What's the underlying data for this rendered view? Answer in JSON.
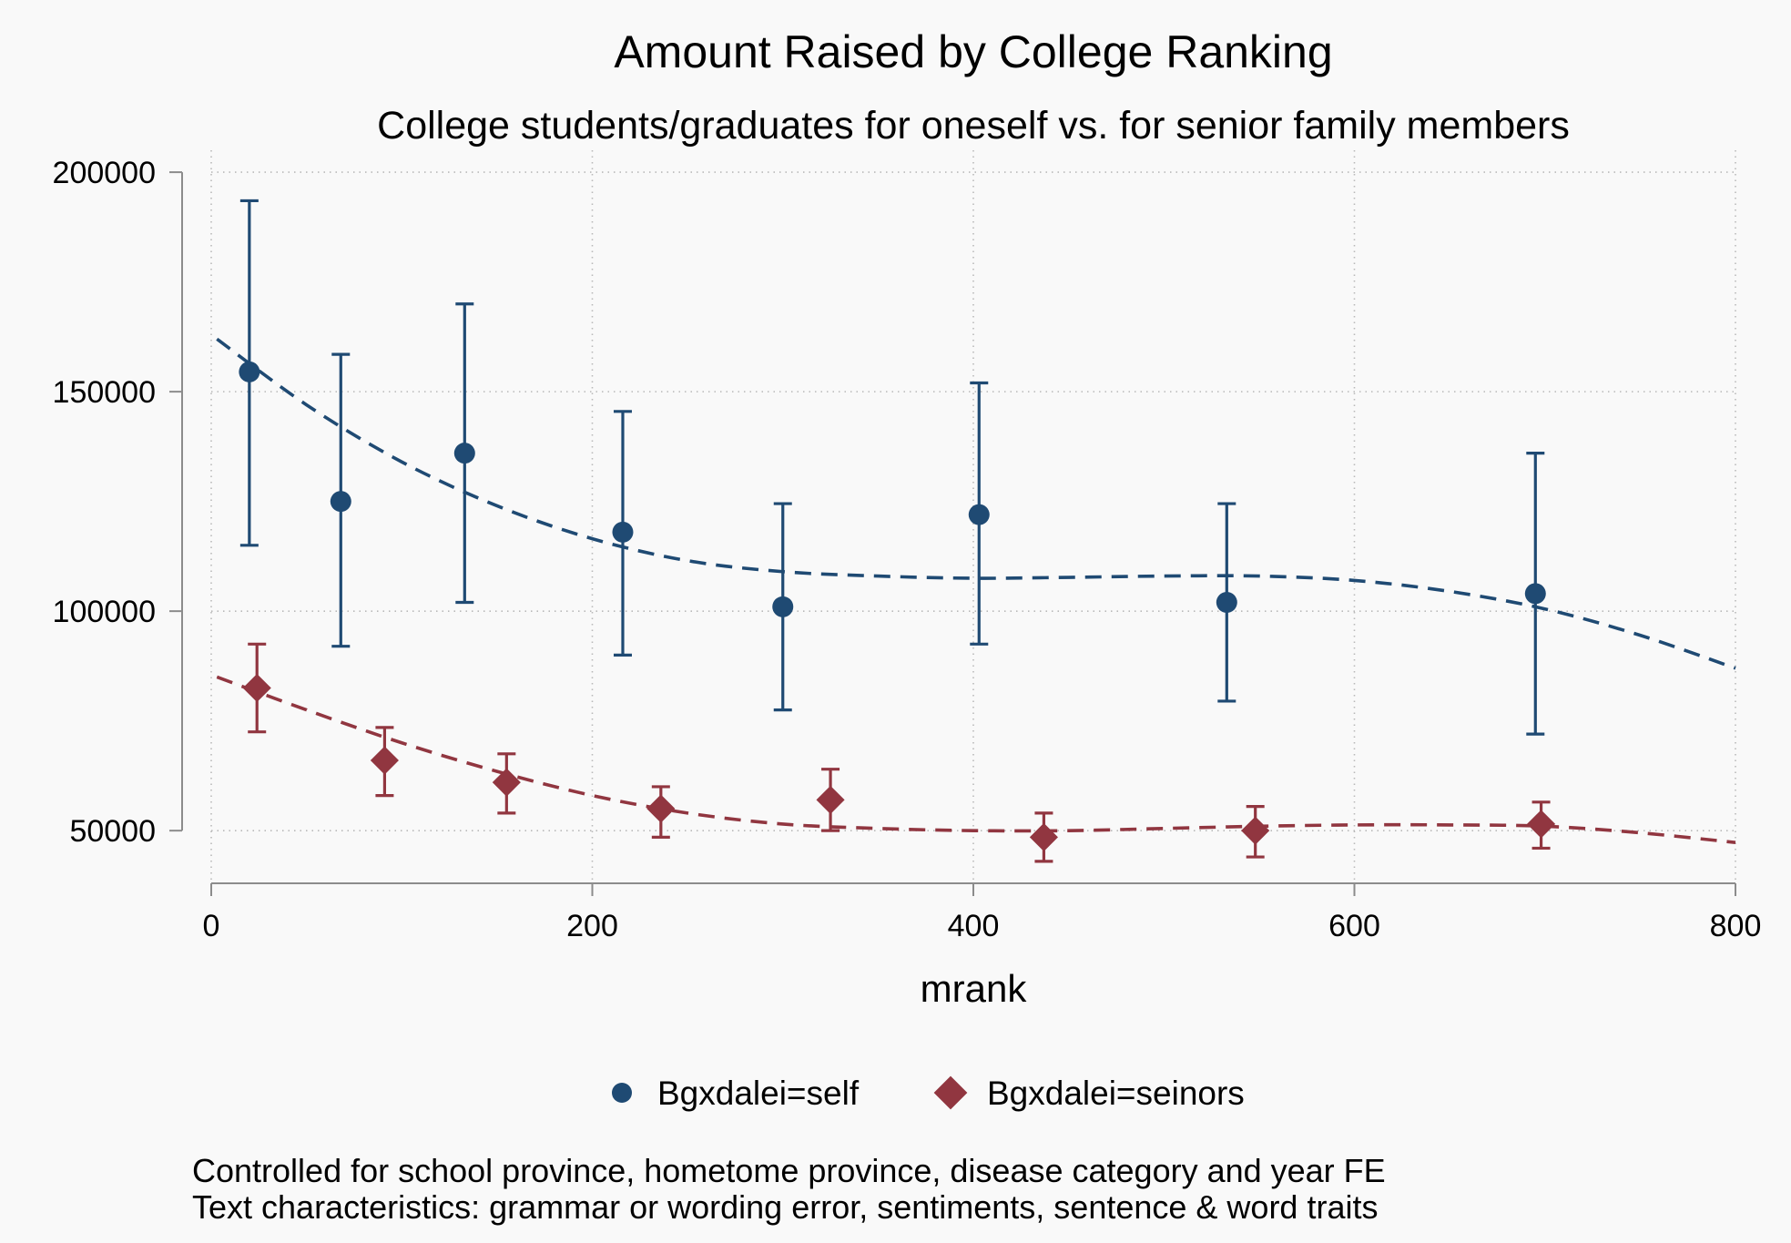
{
  "chart_data": {
    "type": "scatter",
    "title": "Amount Raised by College Ranking",
    "subtitle": "College students/graduates for oneself vs. for senior family members",
    "xlabel": "mrank",
    "ylabel": "",
    "xlim": [
      0,
      800
    ],
    "ylim": [
      38000,
      205000
    ],
    "xticks": [
      "0",
      "200",
      "400",
      "600",
      "800"
    ],
    "yticks": [
      "50000",
      "100000",
      "150000",
      "200000"
    ],
    "grid": true,
    "legend_position": "bottom",
    "series": [
      {
        "name": "Bgxdalei=self",
        "color": "#1f4a73",
        "marker": "circle",
        "x": [
          20,
          68,
          133,
          216,
          300,
          403,
          533,
          695
        ],
        "y": [
          154500,
          125000,
          136000,
          118000,
          101000,
          122000,
          102000,
          104000
        ],
        "ci_low": [
          115000,
          92000,
          102000,
          90000,
          77500,
          92500,
          79500,
          72000
        ],
        "ci_high": [
          193500,
          158500,
          170000,
          145500,
          124500,
          152000,
          124500,
          136000
        ],
        "fit_x": [
          3,
          50,
          100,
          150,
          200,
          250,
          300,
          350,
          400,
          450,
          500,
          550,
          600,
          650,
          700,
          750,
          800
        ],
        "fit_y": [
          162000,
          147000,
          134000,
          124000,
          116500,
          111500,
          109000,
          108000,
          107500,
          107700,
          108000,
          108000,
          107000,
          104500,
          100500,
          94500,
          87000
        ]
      },
      {
        "name": "Bgxdalei=seinors",
        "color": "#913640",
        "marker": "diamond",
        "x": [
          24,
          91,
          155,
          236,
          325,
          437,
          548,
          698
        ],
        "y": [
          82500,
          66000,
          61000,
          55000,
          57000,
          48500,
          50000,
          51500
        ],
        "ci_low": [
          72500,
          58000,
          54000,
          48500,
          50000,
          43000,
          44000,
          46000
        ],
        "ci_high": [
          92500,
          73500,
          67500,
          60000,
          64000,
          54000,
          55500,
          56500
        ],
        "fit_x": [
          3,
          50,
          100,
          150,
          200,
          250,
          300,
          350,
          400,
          450,
          500,
          550,
          600,
          650,
          700,
          750,
          800
        ],
        "fit_y": [
          85000,
          77500,
          70000,
          63500,
          58000,
          54000,
          51500,
          50500,
          50000,
          50000,
          50500,
          51000,
          51300,
          51300,
          51000,
          49500,
          47300
        ]
      }
    ],
    "notes": [
      "Controlled for school province, hometome province, disease category and year FE",
      "Text characteristics: grammar or wording error, sentiments, sentence & word traits"
    ]
  }
}
